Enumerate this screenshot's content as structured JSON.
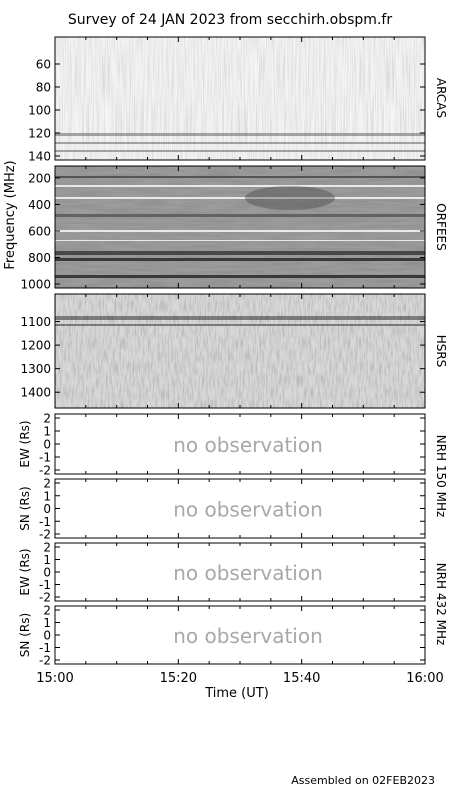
{
  "title": "Survey of 24 JAN 2023 from secchirh.obspm.fr",
  "footer": "Assembled on 02FEB2023",
  "chart_data": {
    "type": "heatmap",
    "title": "Survey of 24 JAN 2023 from secchirh.obspm.fr",
    "xlabel": "Time (UT)",
    "x_ticks": [
      "15:00",
      "15:20",
      "15:40",
      "16:00"
    ],
    "xlim_minutes": [
      0,
      60
    ],
    "shared_ylabel": "Frequency (MHz)",
    "panels": [
      {
        "id": "arcas",
        "instrument": "ARCAS",
        "y_ticks": [
          "60",
          "80",
          "100",
          "120",
          "140"
        ],
        "ylim": [
          140,
          40
        ],
        "status": "observed"
      },
      {
        "id": "orfees",
        "instrument": "ORFEES",
        "y_ticks": [
          "200",
          "400",
          "600",
          "800",
          "1000"
        ],
        "ylim": [
          1000,
          140
        ],
        "status": "observed"
      },
      {
        "id": "hsrs",
        "instrument": "HSRS",
        "y_ticks": [
          "1100",
          "1200",
          "1300",
          "1400"
        ],
        "ylim": [
          1450,
          1000
        ],
        "status": "observed"
      },
      {
        "id": "nrh150ew",
        "ylabel": "EW (Rs)",
        "y_ticks": [
          "2",
          "1",
          "0",
          "-1",
          "-2"
        ],
        "ylim": [
          -2,
          2
        ],
        "status": "no observation"
      },
      {
        "id": "nrh150sn",
        "ylabel": "SN (Rs)",
        "y_ticks": [
          "2",
          "1",
          "0",
          "-1",
          "-2"
        ],
        "ylim": [
          -2,
          2
        ],
        "status": "no observation"
      },
      {
        "id": "nrh432ew",
        "ylabel": "EW (Rs)",
        "y_ticks": [
          "2",
          "1",
          "0",
          "-1",
          "-2"
        ],
        "ylim": [
          -2,
          2
        ],
        "status": "no observation"
      },
      {
        "id": "nrh432sn",
        "ylabel": "SN (Rs)",
        "y_ticks": [
          "2",
          "1",
          "0",
          "-1",
          "-2"
        ],
        "ylim": [
          -2,
          2
        ],
        "status": "no observation"
      }
    ],
    "right_labels": [
      "ARCAS",
      "ORFEES",
      "HSRS",
      "NRH 150 MHz",
      "NRH 432 MHz"
    ],
    "empty_panel_text": "no observation"
  }
}
